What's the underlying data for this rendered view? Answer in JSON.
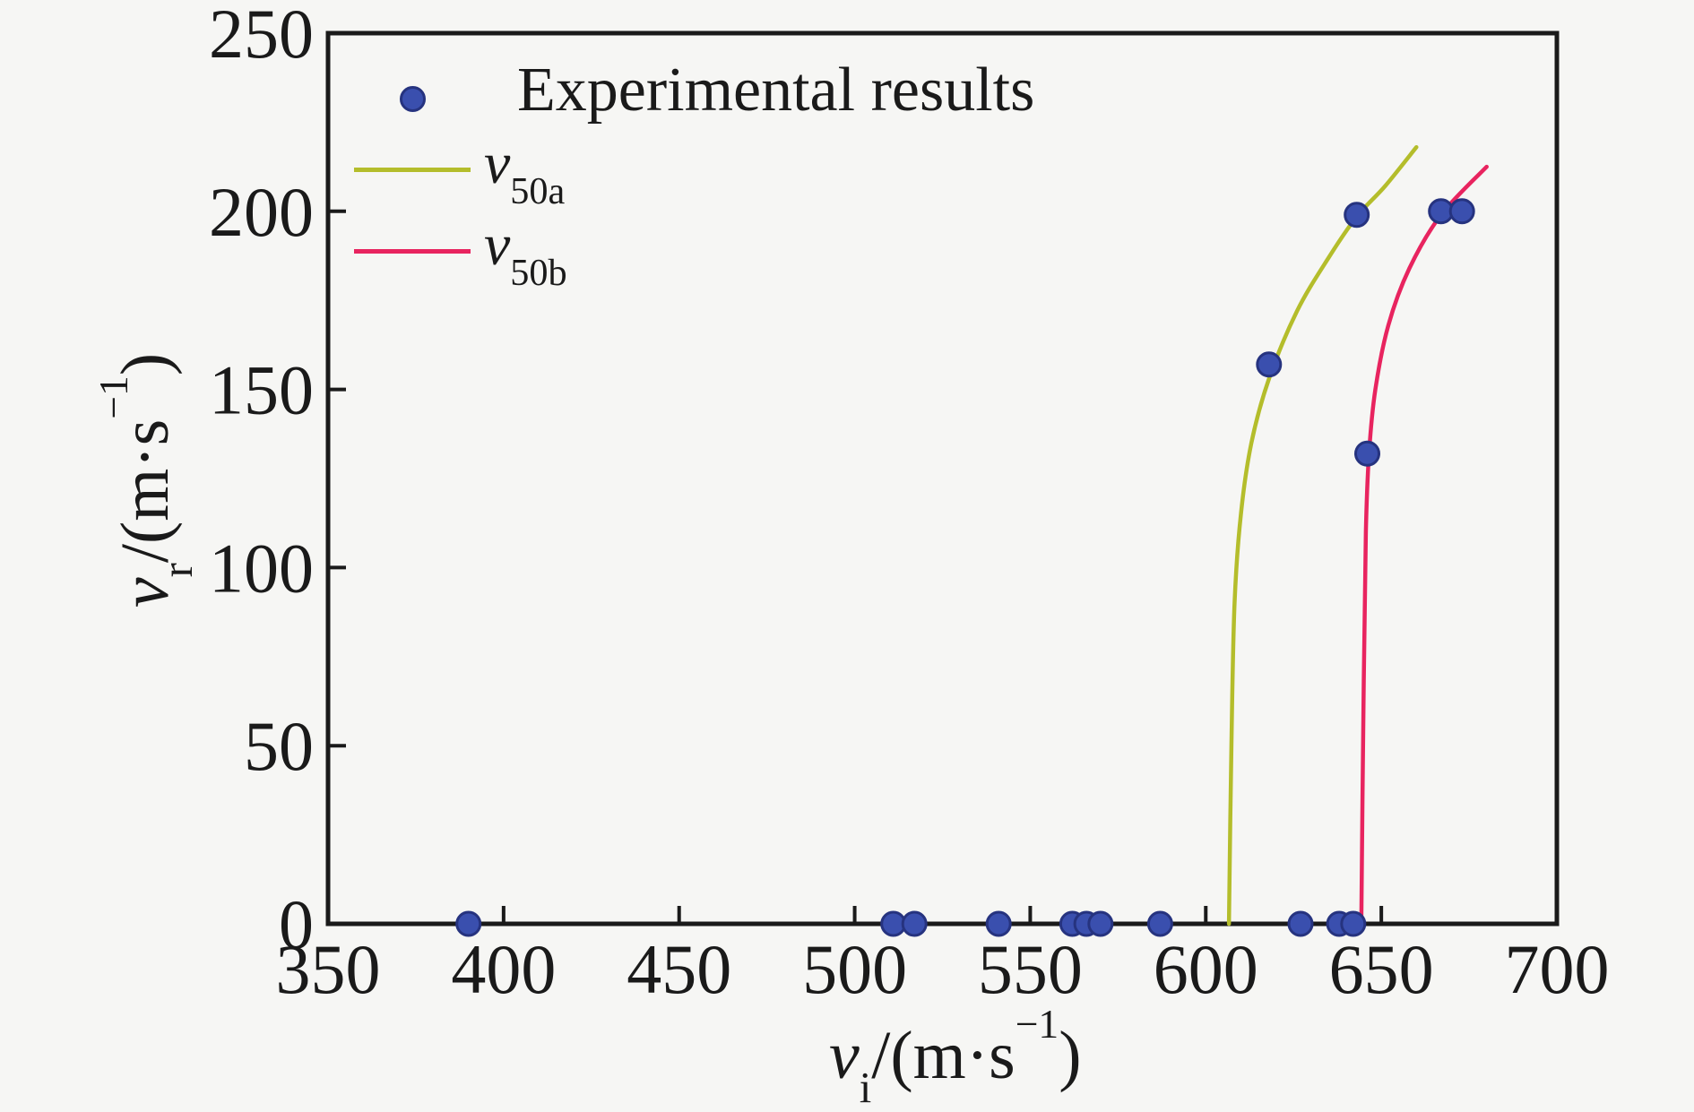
{
  "figure": {
    "background": "#f6f6f4",
    "axis_color": "#1a1a1a"
  },
  "chart_data": {
    "type": "scatter",
    "xlabel": {
      "variable": "v",
      "subscript": "i",
      "unit": "/(m·s",
      "exponent": "−1",
      "close": ")"
    },
    "ylabel": {
      "variable": "v",
      "subscript": "r",
      "unit": "/(m·s",
      "exponent": "−1",
      "close": ")"
    },
    "xlim": [
      350,
      700
    ],
    "ylim": [
      0,
      250
    ],
    "x_ticks": [
      350,
      400,
      450,
      500,
      550,
      600,
      650,
      700
    ],
    "y_ticks": [
      0,
      50,
      100,
      150,
      200,
      250
    ],
    "grid": false,
    "legend_position": "upper-left-inside",
    "series": [
      {
        "id": "experimental",
        "name": "Experimental results",
        "type": "scatter",
        "color": "#3a4fae",
        "edge_color": "#26337f",
        "points": [
          [
            390,
            0
          ],
          [
            511,
            0
          ],
          [
            517,
            0
          ],
          [
            541,
            0
          ],
          [
            562,
            0
          ],
          [
            566,
            0
          ],
          [
            570,
            0
          ],
          [
            587,
            0
          ],
          [
            627,
            0
          ],
          [
            638,
            0
          ],
          [
            642,
            0
          ],
          [
            618,
            157
          ],
          [
            646,
            132
          ],
          [
            643,
            199
          ],
          [
            667,
            200
          ],
          [
            673,
            200
          ]
        ]
      },
      {
        "id": "v50a",
        "name": "v50a",
        "type": "line",
        "color": "#b4bd2b",
        "points": [
          [
            606.6,
            0
          ],
          [
            607.3,
            50
          ],
          [
            608.2,
            90
          ],
          [
            610,
            115
          ],
          [
            613,
            135
          ],
          [
            618,
            153
          ],
          [
            626,
            172
          ],
          [
            635,
            187
          ],
          [
            643,
            198.5
          ],
          [
            651,
            207
          ],
          [
            660,
            218
          ]
        ]
      },
      {
        "id": "v50b",
        "name": "v50b",
        "type": "line",
        "color": "#e8245f",
        "points": [
          [
            644.3,
            0
          ],
          [
            644.9,
            60
          ],
          [
            645.6,
            110
          ],
          [
            646.5,
            132
          ],
          [
            648.3,
            150
          ],
          [
            652,
            168
          ],
          [
            658,
            184
          ],
          [
            667,
            199
          ],
          [
            680,
            212.5
          ]
        ]
      }
    ]
  },
  "legend": {
    "experimental": {
      "label": "Experimental results"
    },
    "v50a": {
      "main": "v",
      "sub": "50a"
    },
    "v50b": {
      "main": "v",
      "sub": "50b"
    }
  }
}
